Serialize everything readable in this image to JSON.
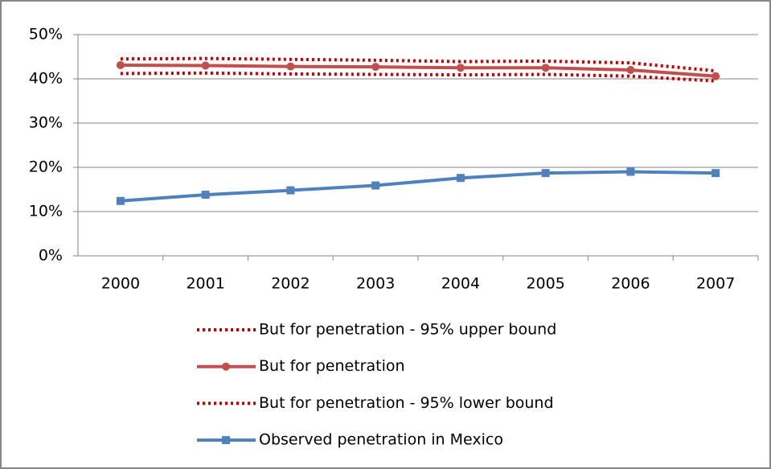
{
  "chart_data": {
    "type": "line",
    "categories": [
      "2000",
      "2001",
      "2002",
      "2003",
      "2004",
      "2005",
      "2006",
      "2007"
    ],
    "series": [
      {
        "name": "But for penetration - 95% upper bound",
        "color": "#c00000",
        "line_style": "dotted",
        "values": [
          44.5,
          44.6,
          44.4,
          44.2,
          43.9,
          44.0,
          43.6,
          41.8
        ]
      },
      {
        "name": "But for penetration",
        "color": "#c0504d",
        "line_style": "solid",
        "marker": "circle",
        "values": [
          43.1,
          43.0,
          42.8,
          42.7,
          42.5,
          42.5,
          42.0,
          40.6
        ]
      },
      {
        "name": "But for penetration - 95% lower bound",
        "color": "#c00000",
        "line_style": "dotted",
        "values": [
          41.2,
          41.3,
          41.1,
          41.0,
          40.9,
          41.0,
          40.6,
          39.5
        ]
      },
      {
        "name": "Observed penetration in Mexico",
        "color": "#4f81bd",
        "line_style": "solid",
        "marker": "square",
        "values": [
          12.4,
          13.8,
          14.8,
          15.9,
          17.6,
          18.7,
          19.0,
          18.7
        ]
      }
    ],
    "ylim": [
      0,
      50
    ],
    "yticks": [
      {
        "value": 0,
        "label": "0%"
      },
      {
        "value": 10,
        "label": "10%"
      },
      {
        "value": 20,
        "label": "20%"
      },
      {
        "value": 30,
        "label": "30%"
      },
      {
        "value": 40,
        "label": "40%"
      },
      {
        "value": 50,
        "label": "50%"
      }
    ],
    "grid": true,
    "legend": "bottom"
  }
}
